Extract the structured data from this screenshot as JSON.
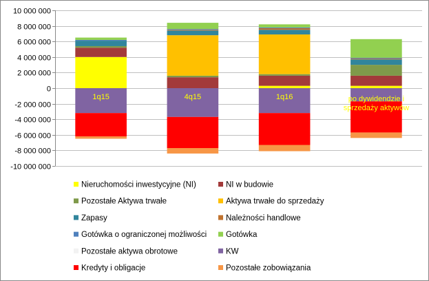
{
  "chart_data": {
    "type": "bar",
    "stacked": true,
    "categories": [
      "1q15",
      "4q15",
      "1q16",
      "po dywidendzie i sprzedaży aktywów"
    ],
    "bar_labels": [
      "1q15",
      "4q15",
      "1q16",
      "po dywidendzie i\nsprzedaży aktywów"
    ],
    "bar_label_colors": [
      "#ffff00",
      "#ffff00",
      "#ffff00",
      "#ffff00"
    ],
    "ylim": [
      -10000000,
      10000000
    ],
    "y_ticks": [
      {
        "value": 10000000,
        "label": "10 000 000"
      },
      {
        "value": 8000000,
        "label": "8 000 000"
      },
      {
        "value": 6000000,
        "label": "6 000 000"
      },
      {
        "value": 4000000,
        "label": "4 000 000"
      },
      {
        "value": 2000000,
        "label": "2 000 000"
      },
      {
        "value": 0,
        "label": "0"
      },
      {
        "value": -2000000,
        "label": "-2 000 000"
      },
      {
        "value": -4000000,
        "label": "-4 000 000"
      },
      {
        "value": -6000000,
        "label": "-6 000 000"
      },
      {
        "value": -8000000,
        "label": "-8 000 000"
      },
      {
        "value": -10000000,
        "label": "-10 000 000"
      }
    ],
    "grid": true,
    "legend_position": "bottom",
    "series": [
      {
        "name": "Nieruchomości inwestycyjne (NI)",
        "color": "#ffff00",
        "values": [
          4000000,
          0,
          300000,
          300000
        ]
      },
      {
        "name": "NI w budowie",
        "color": "#a33a3a",
        "values": [
          1200000,
          1400000,
          1300000,
          1300000
        ]
      },
      {
        "name": "Pozostałe Aktywa trwałe",
        "color": "#7f9a4a",
        "values": [
          200000,
          200000,
          200000,
          1400000
        ]
      },
      {
        "name": "Aktywa trwałe do sprzedaży",
        "color": "#ffc000",
        "values": [
          0,
          5200000,
          5100000,
          0
        ]
      },
      {
        "name": "Zapasy",
        "color": "#31859c",
        "values": [
          700000,
          600000,
          600000,
          700000
        ]
      },
      {
        "name": "Należności handlowe",
        "color": "#c0732f",
        "values": [
          0,
          100000,
          200000,
          100000
        ]
      },
      {
        "name": "Gotówka o ograniczonej możliwości",
        "color": "#4f81bd",
        "values": [
          100000,
          100000,
          100000,
          100000
        ]
      },
      {
        "name": "Gotówka",
        "color": "#92d050",
        "values": [
          300000,
          800000,
          400000,
          2400000
        ]
      },
      {
        "name": "Pozostałe aktywa obrotowe",
        "color": "#f2f2f2",
        "values": [
          0,
          0,
          0,
          0
        ]
      },
      {
        "name": "KW",
        "color": "#8064a2",
        "values": [
          -3200000,
          -3700000,
          -3200000,
          -1700000
        ]
      },
      {
        "name": "Kredyty i obligacje",
        "color": "#ff0000",
        "values": [
          -3000000,
          -4000000,
          -4100000,
          -4000000
        ]
      },
      {
        "name": "Pozostałe zobowiązania",
        "color": "#f79646",
        "values": [
          -300000,
          -700000,
          -800000,
          -700000
        ]
      }
    ]
  }
}
